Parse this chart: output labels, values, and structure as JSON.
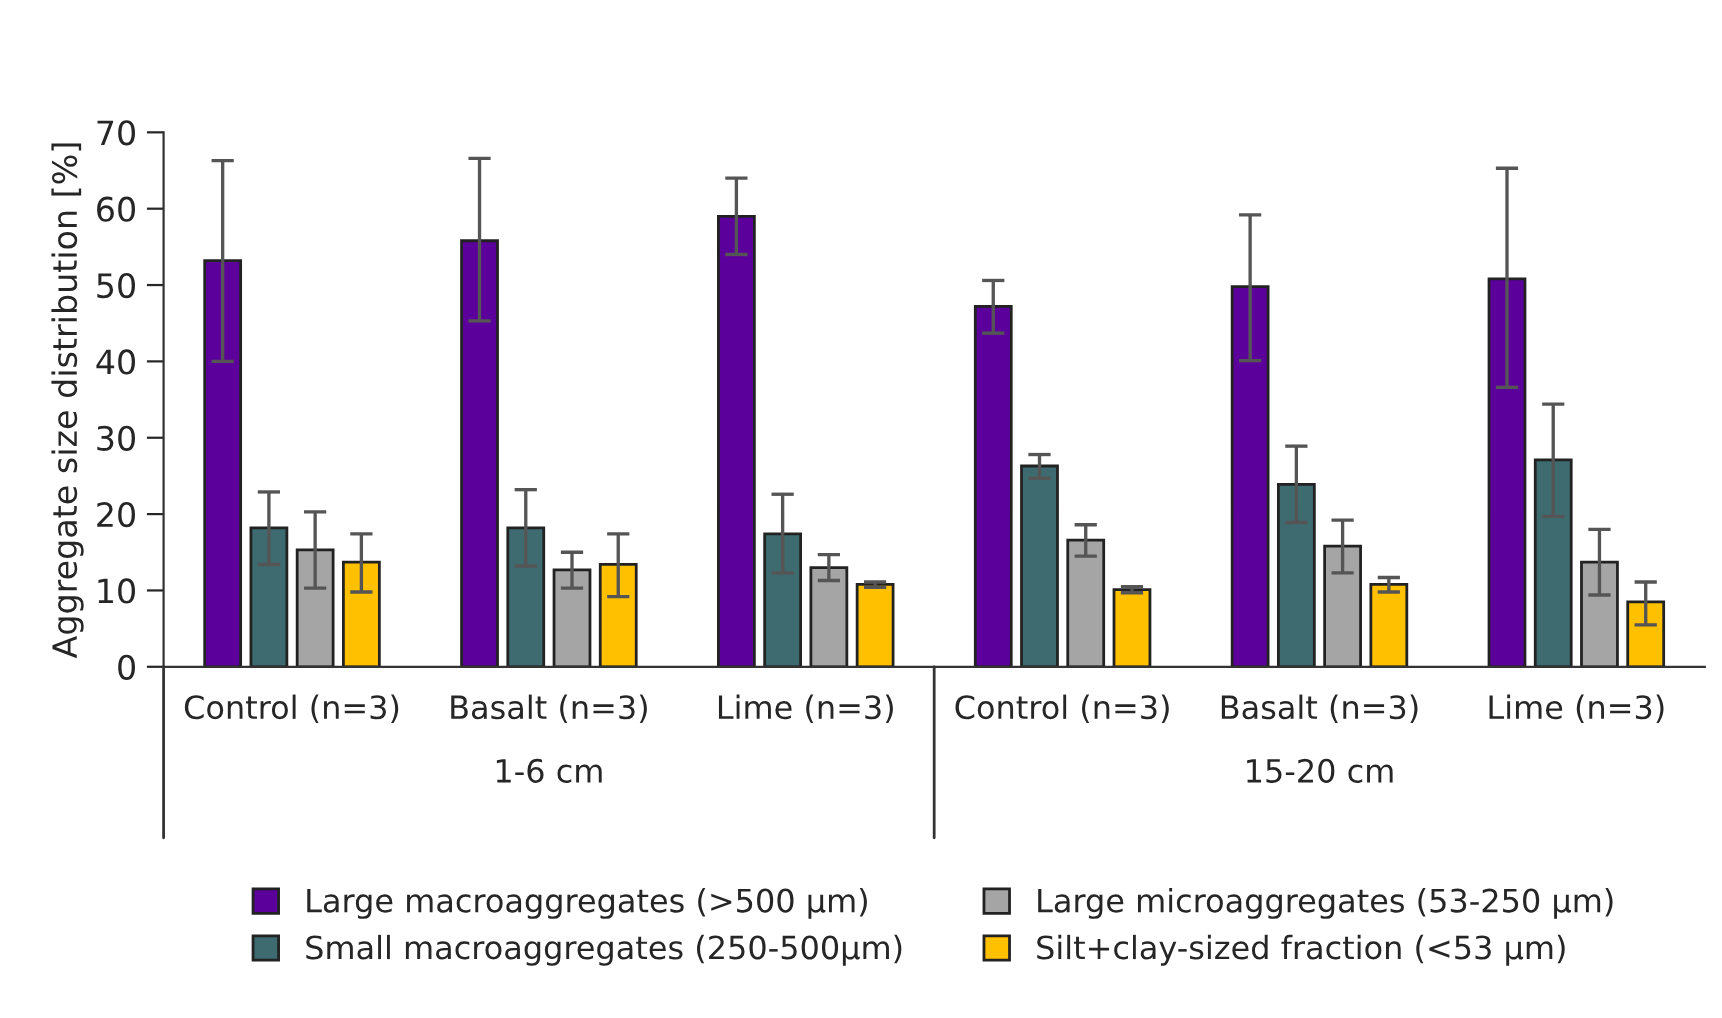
{
  "chart_data": {
    "type": "bar",
    "ylabel": "Aggregate size distribution [%]",
    "categories": [
      "Control (n=3)",
      "Basalt (n=3)",
      "Lime (n=3)",
      "Control (n=3)",
      "Basalt (n=3)",
      "Lime (n=3)"
    ],
    "series": [
      {
        "name": "Large macroaggregates (>500 µm)",
        "color": "#5c009c",
        "values": [
          53.2,
          55.8,
          59,
          47.2,
          49.8,
          50.8
        ],
        "errors": [
          [
            40,
            66.3
          ],
          [
            45.3,
            66.6
          ],
          [
            54,
            64
          ],
          [
            43.7,
            50.6
          ],
          [
            40.1,
            59.2
          ],
          [
            36.6,
            65.3
          ]
        ]
      },
      {
        "name": "Small macroaggregates (250-500µm)",
        "color": "#3d6b70",
        "values": [
          18.2,
          18.2,
          17.4,
          26.3,
          23.9,
          27.1
        ],
        "errors": [
          [
            13.4,
            22.9
          ],
          [
            13.2,
            23.2
          ],
          [
            12.3,
            22.6
          ],
          [
            24.7,
            27.8
          ],
          [
            18.9,
            28.9
          ],
          [
            19.7,
            34.4
          ]
        ]
      },
      {
        "name": "Large microaggregates (53-250 µm)",
        "color": "#a5a5a5",
        "values": [
          15.3,
          12.7,
          13,
          16.6,
          15.8,
          13.7
        ],
        "errors": [
          [
            10.3,
            20.3
          ],
          [
            10.3,
            15
          ],
          [
            11.3,
            14.7
          ],
          [
            14.5,
            18.6
          ],
          [
            12.3,
            19.2
          ],
          [
            9.4,
            18
          ]
        ]
      },
      {
        "name": "Silt+clay-sized fraction (<53 µm)",
        "color": "#ffc000",
        "values": [
          13.7,
          13.4,
          10.8,
          10.1,
          10.8,
          8.5
        ],
        "errors": [
          [
            9.8,
            17.4
          ],
          [
            9.2,
            17.4
          ],
          [
            10.4,
            11.1
          ],
          [
            9.7,
            10.5
          ],
          [
            9.8,
            11.7
          ],
          [
            5.5,
            11.1
          ]
        ]
      }
    ],
    "annotations": [
      "1-6 cm",
      "15-20 cm"
    ],
    "ylim": [
      0,
      70
    ],
    "yticks": [
      0,
      10,
      20,
      30,
      40,
      50,
      60,
      70
    ],
    "grid": false,
    "legend": "bottom"
  }
}
